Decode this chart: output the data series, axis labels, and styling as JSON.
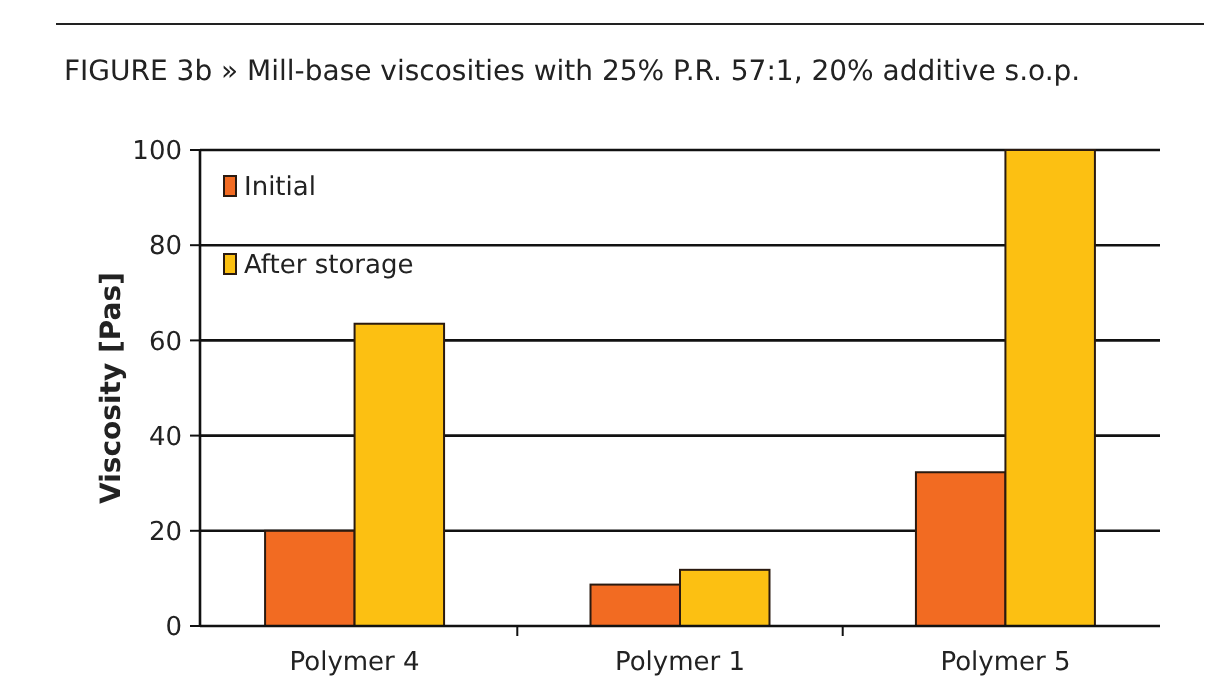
{
  "chart_data": {
    "type": "bar",
    "title": "FIGURE 3b » Mill-base viscosities with 25% P.R. 57:1, 20% additive s.o.p.",
    "ylabel": "Viscosity [Pas]",
    "categories": [
      "Polymer 4",
      "Polymer 1",
      "Polymer 5"
    ],
    "series": [
      {
        "name": "Initial",
        "color": "#f26b22",
        "values": [
          20,
          8.7,
          32.3
        ]
      },
      {
        "name": "After storage",
        "color": "#fcc012",
        "values": [
          63.5,
          11.8,
          100
        ]
      }
    ],
    "ylim": [
      0,
      100
    ],
    "yticks": [
      0,
      20,
      40,
      60,
      80,
      100
    ],
    "grid": "y",
    "legend": "top left"
  }
}
